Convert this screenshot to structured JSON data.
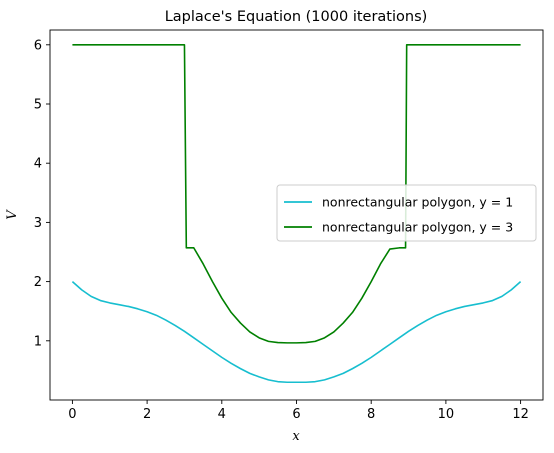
{
  "chart_data": {
    "type": "line",
    "title": "Laplace's Equation (1000 iterations)",
    "xlabel": "x",
    "ylabel": "V",
    "xlim": [
      -0.6,
      12.6
    ],
    "ylim": [
      0.0,
      6.25
    ],
    "xticks": [
      0,
      2,
      4,
      6,
      8,
      10,
      12
    ],
    "yticks": [
      1,
      2,
      3,
      4,
      5,
      6
    ],
    "grid": false,
    "legend_position": "center-right",
    "series": [
      {
        "name": "nonrectangular polygon, $y=1$",
        "legend_text": "nonrectangular polygon, y = 1",
        "color": "#17becf",
        "x": [
          0,
          0.25,
          0.5,
          0.75,
          1.0,
          1.25,
          1.5,
          1.75,
          2.0,
          2.25,
          2.5,
          2.75,
          3.0,
          3.25,
          3.5,
          3.75,
          4.0,
          4.25,
          4.5,
          4.75,
          5.0,
          5.25,
          5.5,
          5.75,
          6.0,
          6.25,
          6.5,
          6.75,
          7.0,
          7.25,
          7.5,
          7.75,
          8.0,
          8.25,
          8.5,
          8.75,
          9.0,
          9.25,
          9.5,
          9.75,
          10.0,
          10.25,
          10.5,
          10.75,
          11.0,
          11.25,
          11.5,
          11.75,
          12.0
        ],
        "y": [
          2.0,
          1.86,
          1.75,
          1.68,
          1.64,
          1.61,
          1.58,
          1.54,
          1.49,
          1.43,
          1.35,
          1.26,
          1.16,
          1.05,
          0.94,
          0.83,
          0.72,
          0.62,
          0.53,
          0.45,
          0.39,
          0.34,
          0.31,
          0.3,
          0.3,
          0.3,
          0.31,
          0.34,
          0.39,
          0.45,
          0.53,
          0.62,
          0.72,
          0.83,
          0.94,
          1.05,
          1.16,
          1.26,
          1.35,
          1.43,
          1.49,
          1.54,
          1.58,
          1.61,
          1.64,
          1.68,
          1.75,
          1.86,
          2.0
        ]
      },
      {
        "name": "nonrectangular polygon, $y=3$",
        "legend_text": "nonrectangular polygon, y = 3",
        "color": "#008000",
        "x": [
          0,
          3.0,
          3.05,
          3.1,
          3.25,
          3.5,
          3.75,
          4.0,
          4.25,
          4.5,
          4.75,
          5.0,
          5.25,
          5.5,
          5.75,
          6.0,
          6.25,
          6.5,
          6.75,
          7.0,
          7.25,
          7.5,
          7.75,
          8.0,
          8.25,
          8.5,
          8.75,
          8.85,
          8.92,
          8.95,
          9.05,
          12.0
        ],
        "y": [
          6.0,
          6.0,
          2.57,
          2.57,
          2.57,
          2.3,
          2.0,
          1.72,
          1.48,
          1.3,
          1.15,
          1.05,
          0.99,
          0.97,
          0.965,
          0.965,
          0.97,
          0.99,
          1.05,
          1.15,
          1.3,
          1.48,
          1.72,
          2.0,
          2.3,
          2.55,
          2.57,
          2.57,
          2.57,
          6.0,
          6.0,
          6.0
        ]
      }
    ]
  }
}
